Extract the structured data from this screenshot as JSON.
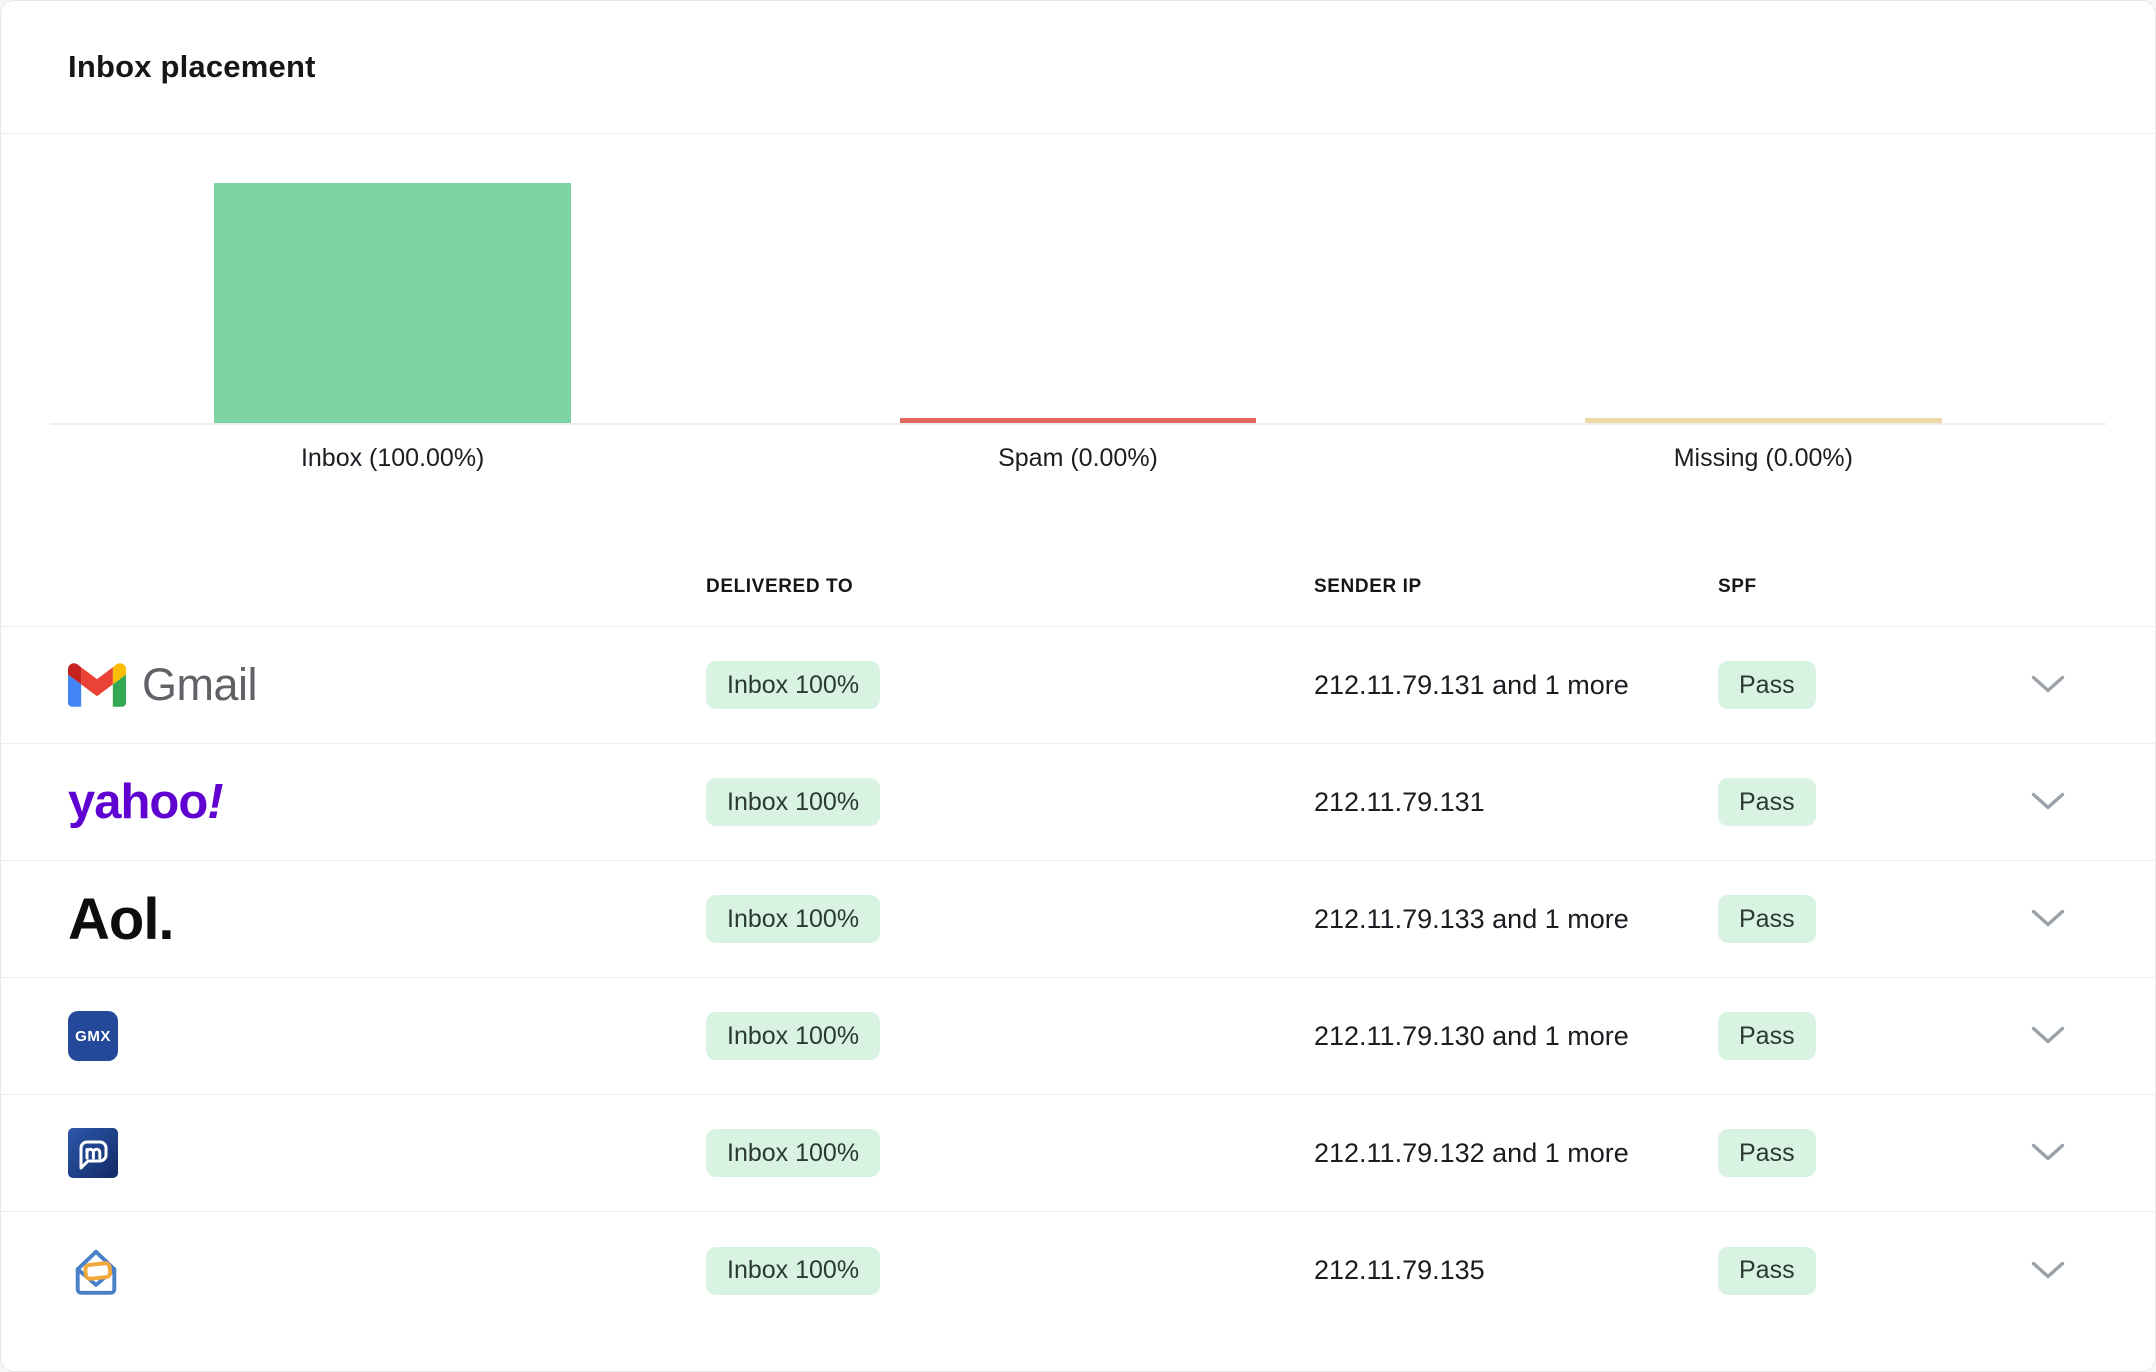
{
  "header": {
    "title": "Inbox placement"
  },
  "chart_data": {
    "type": "bar",
    "title": "",
    "categories": [
      "Inbox",
      "Spam",
      "Missing"
    ],
    "values": [
      100.0,
      0.0,
      0.0
    ],
    "labels": [
      "Inbox (100.00%)",
      "Spam (0.00%)",
      "Missing (0.00%)"
    ],
    "bar_colors": [
      "#7dd3a2",
      "#e2685d",
      "#ecd9a6"
    ],
    "xlabel": "",
    "ylabel": "",
    "ylim": [
      0,
      100
    ],
    "grid": false,
    "legend": "none"
  },
  "table": {
    "headers": {
      "delivered_to": "DELIVERED TO",
      "sender_ip": "SENDER IP",
      "spf": "SPF"
    },
    "rows": [
      {
        "provider": "Gmail",
        "logo_text": "Gmail",
        "delivered_to": "Inbox 100%",
        "sender_ip": "212.11.79.131 and 1 more",
        "spf": "Pass"
      },
      {
        "provider": "Yahoo",
        "logo_text": "yahoo",
        "logo_bang": "!",
        "delivered_to": "Inbox 100%",
        "sender_ip": "212.11.79.131",
        "spf": "Pass"
      },
      {
        "provider": "Aol",
        "logo_text": "Aol.",
        "delivered_to": "Inbox 100%",
        "sender_ip": "212.11.79.133 and 1 more",
        "spf": "Pass"
      },
      {
        "provider": "GMX",
        "logo_text": "GMX",
        "delivered_to": "Inbox 100%",
        "sender_ip": "212.11.79.130 and 1 more",
        "spf": "Pass"
      },
      {
        "provider": "mail.com",
        "delivered_to": "Inbox 100%",
        "sender_ip": "212.11.79.132 and 1 more",
        "spf": "Pass"
      },
      {
        "provider": "Zoho Mail",
        "delivered_to": "Inbox 100%",
        "sender_ip": "212.11.79.135",
        "spf": "Pass"
      }
    ]
  },
  "colors": {
    "bar_inbox": "#7dd3a2",
    "bar_spam": "#e2685d",
    "bar_missing": "#ecd9a6",
    "badge_background": "#d8f3e2",
    "badge_text": "#2b3a31",
    "divider": "#ededed",
    "yahoo_purple": "#5f01d1",
    "gmx_blue": "#24499a"
  }
}
